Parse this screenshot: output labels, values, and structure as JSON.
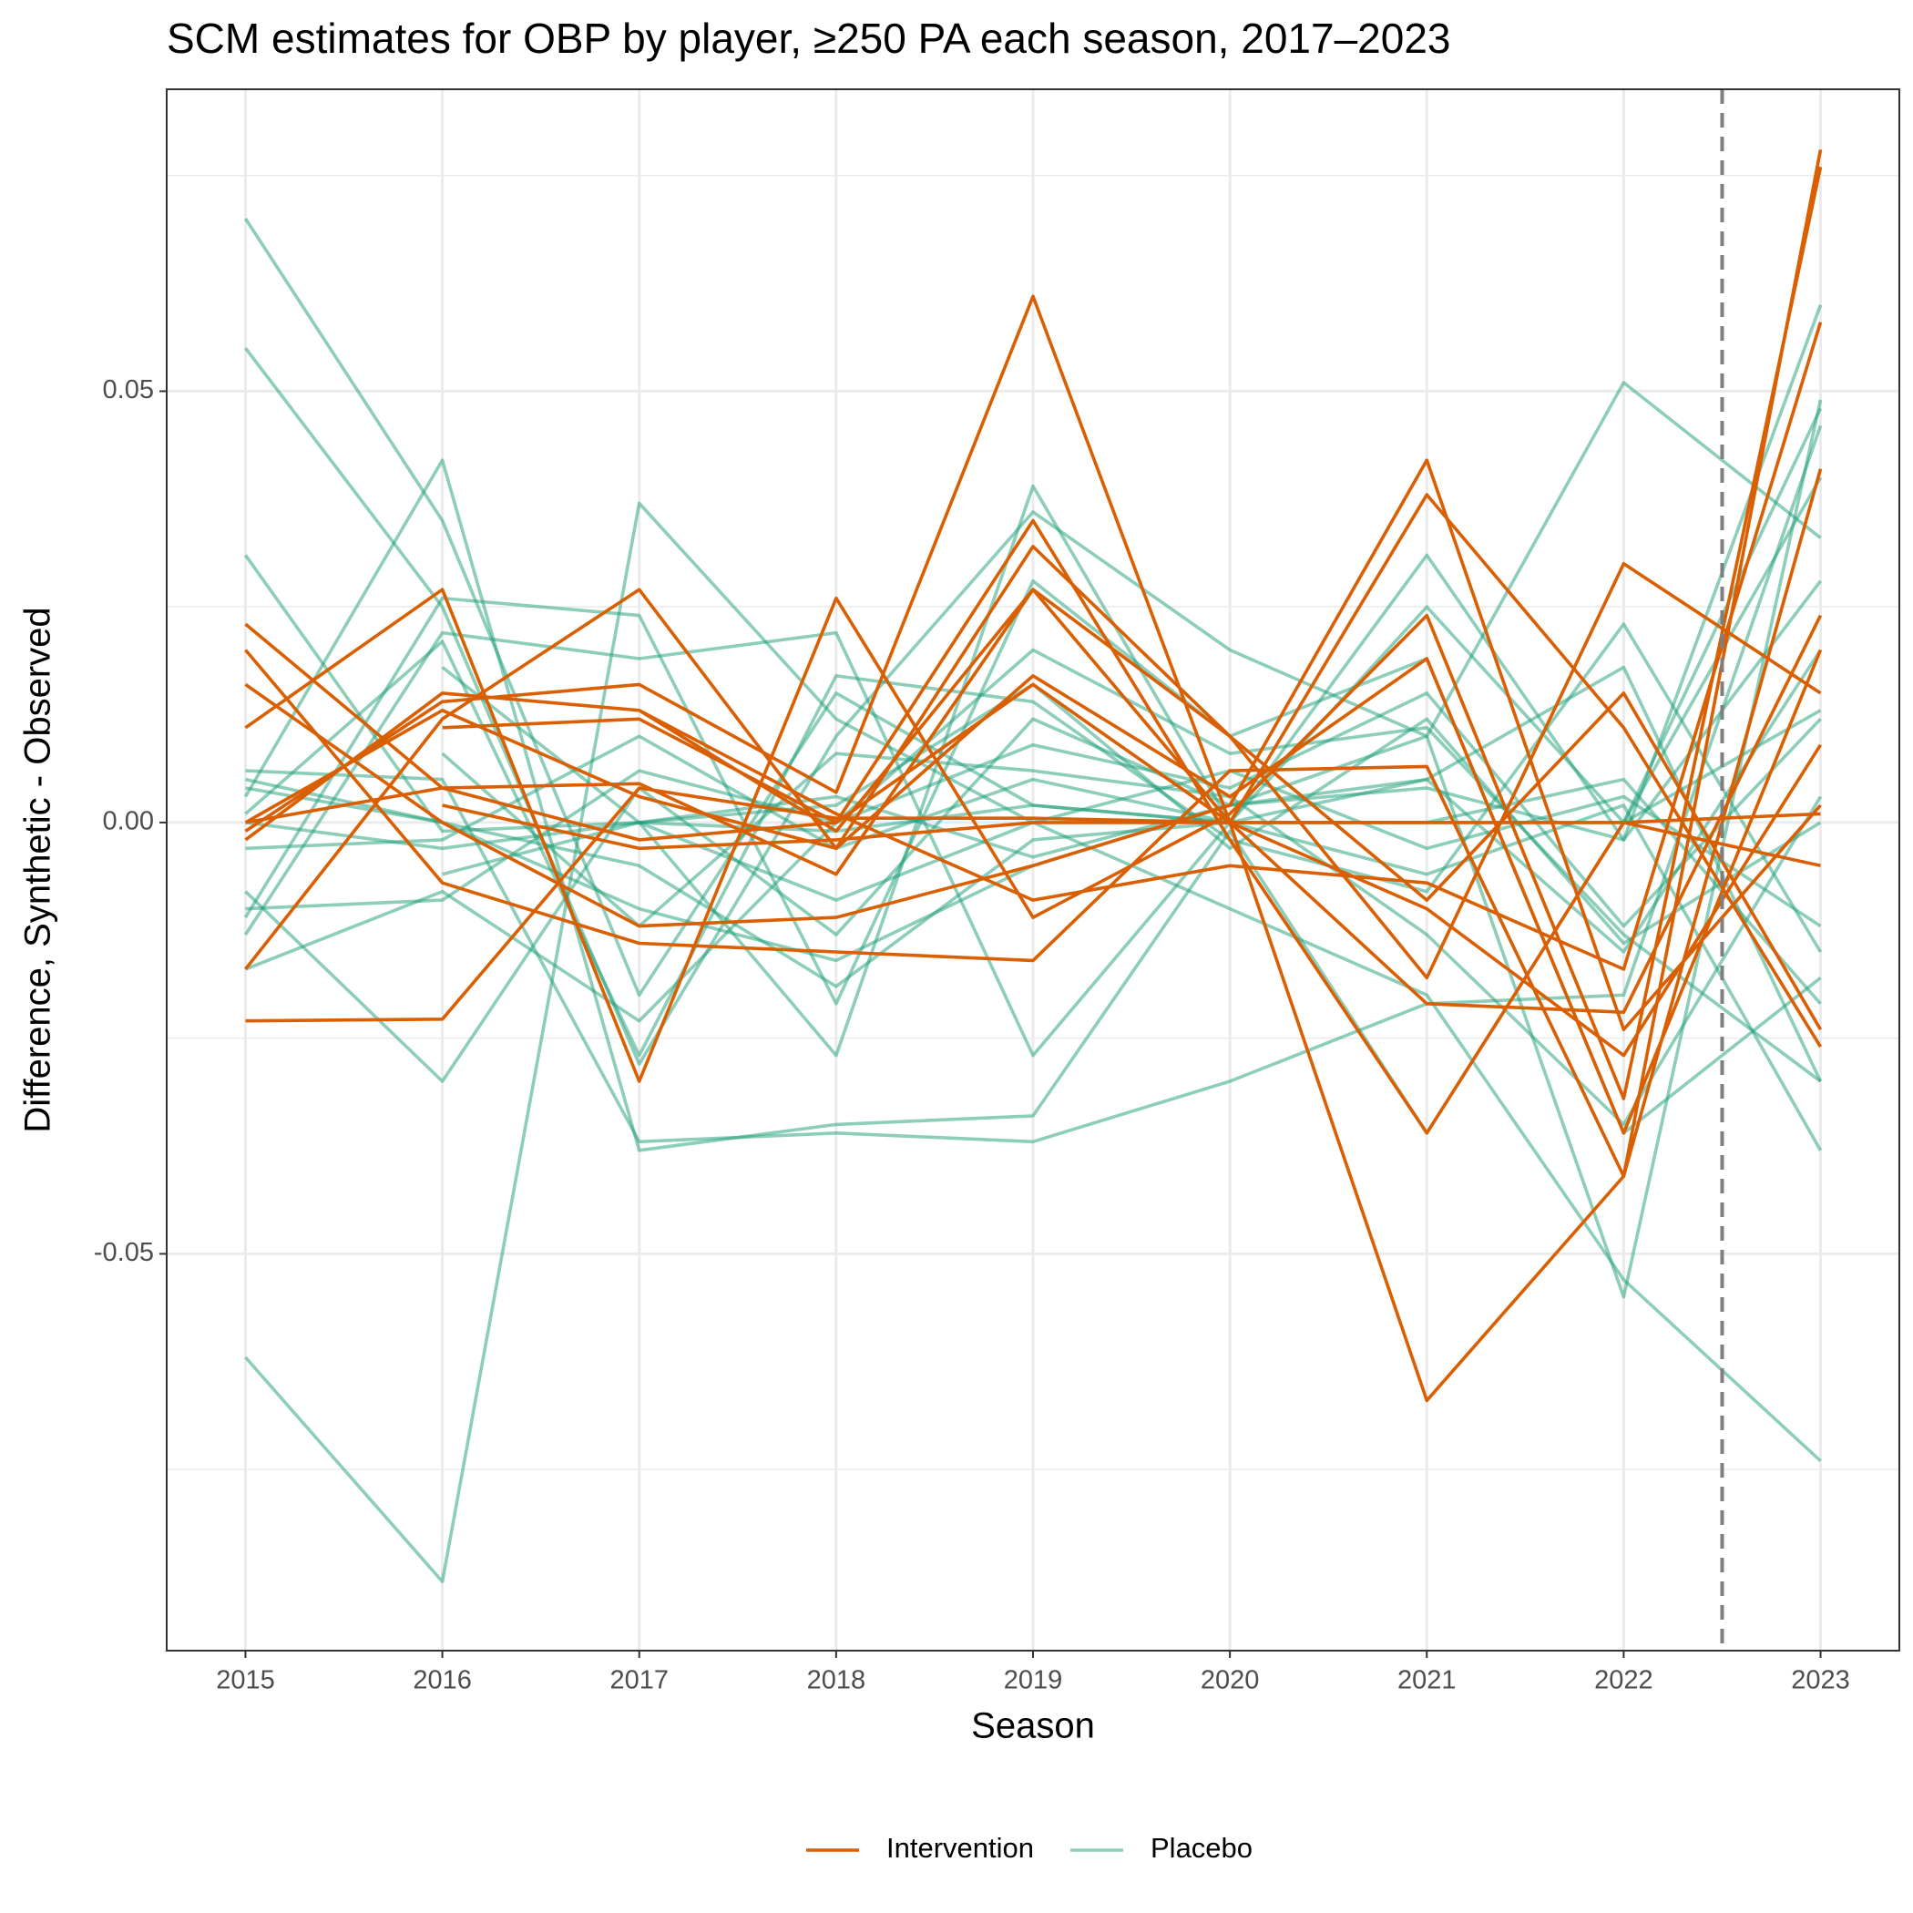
{
  "chart_data": {
    "type": "line",
    "title": "SCM estimates for OBP by player, ≥250 PA each season, 2017–2023",
    "x_label": "Season",
    "y_label": "Difference, Synthetic - Observed",
    "x": [
      2015,
      2016,
      2017,
      2018,
      2019,
      2020,
      2021,
      2022,
      2023
    ],
    "xlim": [
      2014.6,
      2023.4
    ],
    "xticks": [
      2015,
      2016,
      2017,
      2018,
      2019,
      2020,
      2021,
      2022,
      2023
    ],
    "ylim": [
      -0.096,
      0.085
    ],
    "yticks": [
      -0.05,
      {
        "value": 0,
        "label": "0.00"
      },
      0.05
    ],
    "minor_yticks": [
      -0.075,
      -0.025,
      0.025,
      0.075
    ],
    "grid": true,
    "vline": 2022.5,
    "legend": "bottom",
    "series": [
      {
        "name": "Placebo",
        "color": "#1b9e77",
        "opacity": 0.5,
        "lines": [
          [
            0.07,
            0.035,
            -0.02,
            0.015,
            0.002,
            0.0,
            0.005,
            -0.015,
            0.02
          ],
          [
            0.055,
            0.025,
            -0.028,
            0.01,
            0.036,
            0.02,
            0.01,
            0.051,
            0.033
          ],
          [
            -0.062,
            -0.088,
            0.037,
            0.012,
            0.0,
            -0.01,
            -0.02,
            -0.053,
            -0.074
          ],
          [
            0.031,
            -0.001,
            0.0,
            -0.027,
            0.039,
            0.0,
            0.031,
            -0.002,
            0.06
          ],
          [
            0.006,
            0.005,
            -0.037,
            -0.036,
            -0.037,
            -0.03,
            -0.021,
            -0.02,
            0.046
          ],
          [
            0.003,
            0.042,
            -0.038,
            -0.035,
            -0.034,
            -0.001,
            -0.036,
            0.0,
            0.048
          ],
          [
            -0.011,
            0.026,
            0.024,
            -0.021,
            0.028,
            0.01,
            0.019,
            -0.036,
            -0.018
          ],
          [
            -0.008,
            -0.03,
            0.004,
            -0.013,
            0.012,
            0.002,
            0.01,
            -0.055,
            0.049
          ],
          [
            -0.013,
            0.022,
            0.019,
            0.022,
            -0.027,
            0.0,
            0.025,
            0.0,
            0.04
          ],
          [
            -0.017,
            -0.008,
            -0.023,
            0.0,
            0.02,
            0.008,
            0.011,
            -0.013,
            -0.03
          ],
          [
            0.001,
            0.021,
            -0.027,
            0.017,
            0.014,
            -0.002,
            -0.008,
            0.023,
            -0.015
          ],
          [
            -0.003,
            -0.002,
            0.01,
            -0.003,
            0.005,
            0.0,
            -0.006,
            0.002,
            -0.038
          ],
          [
            -0.01,
            -0.009,
            0.006,
            0.0,
            0.009,
            0.004,
            0.015,
            -0.012,
            0.012
          ],
          [
            0.005,
            0.0,
            -0.005,
            -0.019,
            -0.002,
            0.0,
            0.0,
            0.005,
            -0.021
          ],
          [
            null,
            0.008,
            -0.012,
            0.008,
            0.006,
            0.003,
            -0.013,
            -0.035,
            0.003
          ],
          [
            null,
            null,
            0.0,
            -0.001,
            0.002,
            0.0,
            0.0,
            0.0,
            0.013
          ],
          [
            null,
            -0.006,
            0.0,
            0.003,
            -0.004,
            0.002,
            0.005,
            0.018,
            -0.03
          ],
          [
            0.004,
            0.0,
            -0.01,
            -0.016,
            -0.005,
            0.002,
            0.004,
            -0.002,
            0.028
          ],
          [
            0.0,
            -0.003,
            0.0,
            -0.009,
            0.0,
            0.006,
            -0.003,
            0.003,
            -0.012
          ],
          [
            null,
            0.018,
            0.0,
            0.002,
            0.016,
            -0.003,
            0.012,
            -0.014,
            0.0
          ]
        ]
      },
      {
        "name": "Intervention",
        "color": "#d95f02",
        "opacity": 1,
        "lines": [
          [
            -0.023,
            -0.0228,
            0.004,
            0.0005,
            0.0005,
            0.0,
            0.0,
            0.0,
            0.001
          ],
          [
            0.023,
            0.004,
            0.0045,
            -0.006,
            0.027,
            0.01,
            -0.018,
            0.03,
            0.015
          ],
          [
            0.02,
            -0.007,
            -0.014,
            -0.015,
            -0.016,
            0.006,
            0.0065,
            -0.041,
            0.078
          ],
          [
            0.016,
            0.0,
            -0.012,
            -0.011,
            -0.005,
            0.002,
            0.042,
            -0.024,
            0.002
          ],
          [
            0.011,
            0.027,
            -0.03,
            0.026,
            -0.011,
            0.001,
            0.024,
            -0.032,
            0.076
          ],
          [
            0.0,
            0.013,
            0.003,
            -0.003,
            0.032,
            0.01,
            -0.009,
            0.015,
            -0.024
          ],
          [
            -0.001,
            0.014,
            0.016,
            0.0035,
            0.061,
            0.0,
            -0.067,
            -0.041,
            0.041
          ],
          [
            -0.002,
            0.015,
            0.013,
            0.001,
            -0.009,
            -0.005,
            -0.007,
            -0.017,
            0.058
          ],
          [
            -0.017,
            0.012,
            0.027,
            -0.003,
            0.017,
            0.003,
            0.019,
            -0.036,
            0.02
          ],
          [
            null,
            0.011,
            0.012,
            0.0,
            0.035,
            -0.002,
            -0.036,
            0.0,
            -0.005
          ],
          [
            null,
            0.002,
            -0.003,
            -0.002,
            0.0,
            0.0,
            0.038,
            0.011,
            -0.026
          ],
          [
            null,
            null,
            0.013,
            -0.001,
            0.027,
            0.0,
            -0.021,
            -0.022,
            0.024
          ],
          [
            0.0,
            0.004,
            -0.002,
            0.0,
            0.016,
            0.0,
            -0.01,
            -0.027,
            0.009
          ]
        ]
      }
    ]
  }
}
